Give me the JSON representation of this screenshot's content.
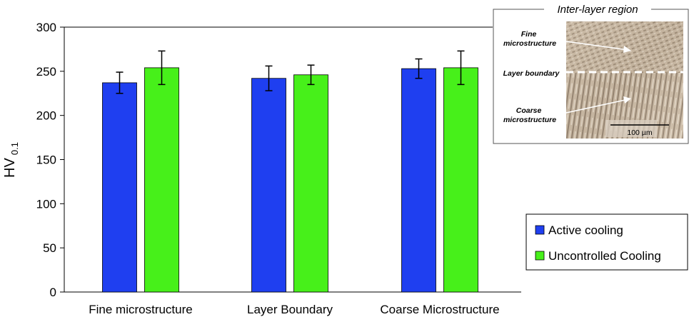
{
  "chart_data": {
    "type": "bar",
    "title": "",
    "xlabel": "",
    "ylabel": "HV",
    "ylabel_subscript": "0.1",
    "ylim": [
      0,
      300
    ],
    "yticks": [
      0,
      50,
      100,
      150,
      200,
      250,
      300
    ],
    "grid": false,
    "legend_position": "right",
    "error_bars": true,
    "categories": [
      "Fine microstructure",
      "Layer Boundary",
      "Coarse Microstructure"
    ],
    "series": [
      {
        "name": "Active cooling",
        "color": "#1f3ff0",
        "values": [
          237,
          242,
          253
        ],
        "errors": [
          12,
          14,
          11
        ]
      },
      {
        "name": "Uncontrolled Cooling",
        "color": "#47f01a",
        "values": [
          254,
          246,
          254
        ],
        "errors": [
          19,
          11,
          19
        ]
      }
    ]
  },
  "inset": {
    "title": "Inter-layer region",
    "labels": {
      "fine": [
        "Fine",
        "microstructure"
      ],
      "boundary": "Layer boundary",
      "coarse": [
        "Coarse",
        "microstructure"
      ]
    },
    "scale_bar": "100 µm"
  }
}
